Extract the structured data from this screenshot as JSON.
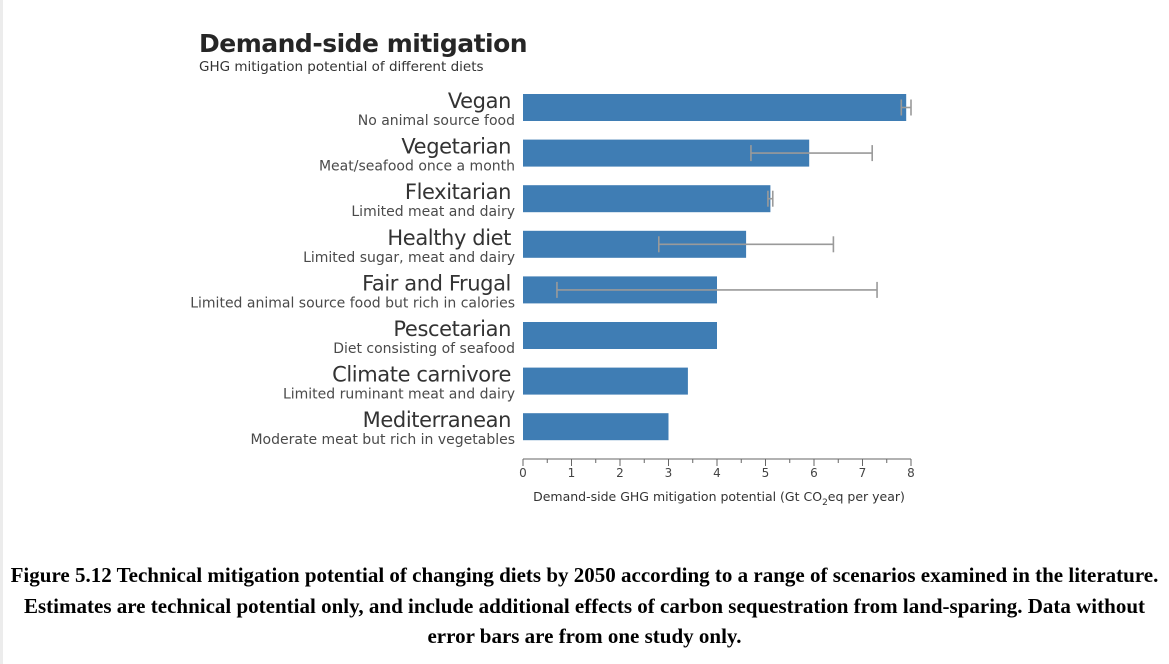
{
  "chart_data": {
    "type": "bar",
    "orientation": "horizontal",
    "title": "Demand-side mitigation",
    "subtitle": "GHG mitigation potential of different diets",
    "categories": [
      {
        "name": "Vegan",
        "description": "No animal source food"
      },
      {
        "name": "Vegetarian",
        "description": "Meat/seafood once a month"
      },
      {
        "name": "Flexitarian",
        "description": "Limited meat and dairy"
      },
      {
        "name": "Healthy diet",
        "description": "Limited sugar, meat and dairy"
      },
      {
        "name": "Fair and Frugal",
        "description": "Limited animal source food but rich in calories"
      },
      {
        "name": "Pescetarian",
        "description": "Diet consisting of seafood"
      },
      {
        "name": "Climate carnivore",
        "description": "Limited ruminant meat and dairy"
      },
      {
        "name": "Mediterranean",
        "description": "Moderate meat but rich in vegetables"
      }
    ],
    "values": [
      7.9,
      5.9,
      5.1,
      4.6,
      4.0,
      4.0,
      3.4,
      3.0
    ],
    "error_ranges": [
      [
        7.8,
        8.0
      ],
      [
        4.7,
        7.2
      ],
      [
        5.05,
        5.15
      ],
      [
        2.8,
        6.4
      ],
      [
        0.7,
        7.3
      ],
      null,
      null,
      null
    ],
    "xlabel_prefix": "Demand-side GHG mitigation potential (Gt CO",
    "xlabel_sub": "2",
    "xlabel_suffix": "eq per year)",
    "xlim": [
      0,
      8
    ],
    "ticks": [
      "0",
      "1",
      "2",
      "3",
      "4",
      "5",
      "6",
      "7",
      "8"
    ],
    "grid": false,
    "colors": {
      "bar": "#3f7db4",
      "error": "#9a9a9a",
      "axis": "#666666"
    }
  },
  "caption": "Figure 5.12 Technical mitigation potential of changing diets by 2050 according to a range of scenarios examined in the literature. Estimates are technical potential only, and include additional effects of carbon sequestration from land-sparing. Data without error bars are from one study only."
}
